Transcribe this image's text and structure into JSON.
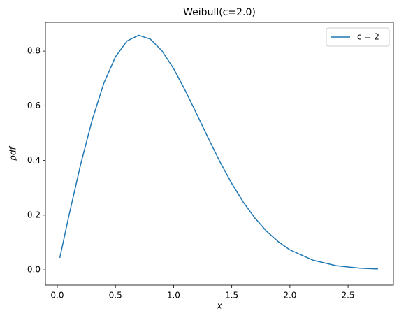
{
  "chart_data": {
    "type": "line",
    "title": "Weibull(c=2.0)",
    "x_label": "x",
    "y_label": "pdf",
    "x": [
      0.022,
      0.1,
      0.2,
      0.3,
      0.4,
      0.5,
      0.6,
      0.7,
      0.8,
      0.9,
      1.0,
      1.1,
      1.2,
      1.3,
      1.4,
      1.5,
      1.6,
      1.7,
      1.8,
      1.9,
      2.0,
      2.2,
      2.4,
      2.6,
      2.757
    ],
    "series": [
      {
        "name": "c = 2",
        "color": "#1f77b4",
        "values": [
          0.044,
          0.198,
          0.384,
          0.548,
          0.682,
          0.779,
          0.837,
          0.858,
          0.844,
          0.801,
          0.736,
          0.656,
          0.569,
          0.48,
          0.394,
          0.316,
          0.247,
          0.189,
          0.141,
          0.103,
          0.073,
          0.035,
          0.015,
          0.006,
          0.003
        ]
      }
    ],
    "xlim": [
      -0.102,
      2.89
    ],
    "ylim": [
      -0.056,
      0.905
    ],
    "xticks": [
      {
        "value": 0,
        "label": "0.0"
      },
      {
        "value": 0.5,
        "label": "0.5"
      },
      {
        "value": 1,
        "label": "1.0"
      },
      {
        "value": 1.5,
        "label": "1.5"
      },
      {
        "value": 2,
        "label": "2.0"
      },
      {
        "value": 2.5,
        "label": "2.5"
      }
    ],
    "yticks": [
      {
        "value": 0,
        "label": "0.0"
      },
      {
        "value": 0.2,
        "label": "0.2"
      },
      {
        "value": 0.4,
        "label": "0.4"
      },
      {
        "value": 0.6,
        "label": "0.6"
      },
      {
        "value": 0.8,
        "label": "0.8"
      }
    ],
    "legend": "upper right",
    "grid": false
  }
}
